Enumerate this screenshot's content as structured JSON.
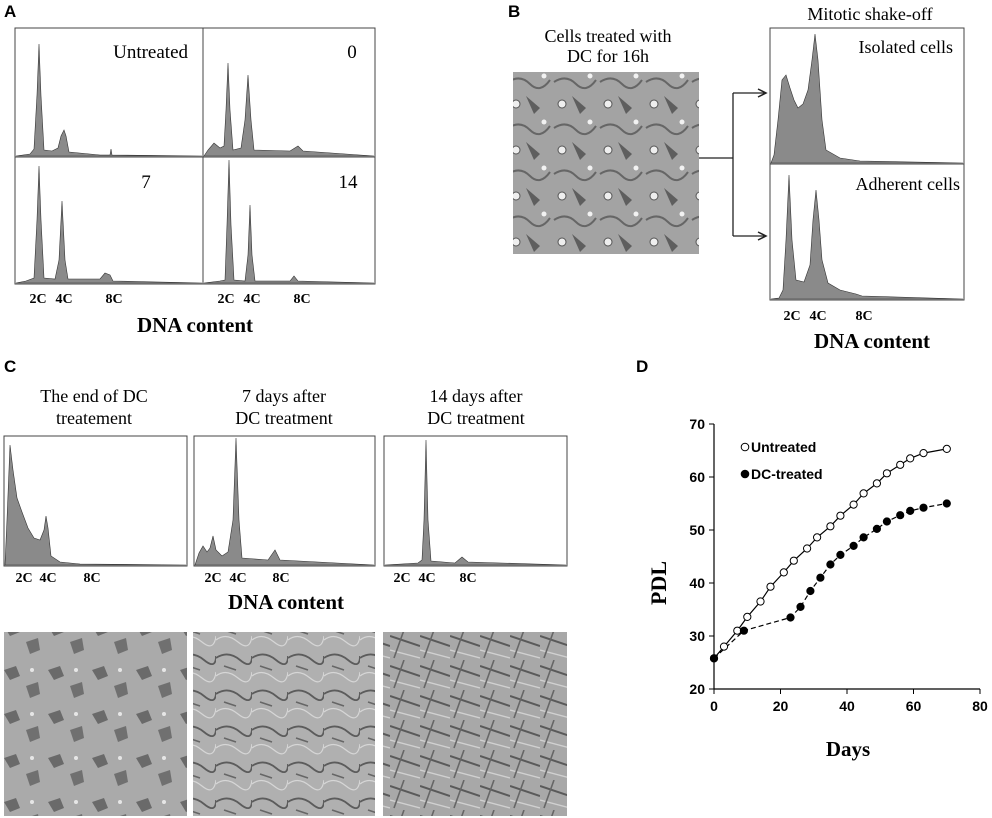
{
  "panel_labels": {
    "a": "A",
    "b": "B",
    "c": "C",
    "d": "D"
  },
  "panel_a": {
    "histogram_labels": [
      "Untreated",
      "0",
      "7",
      "14"
    ],
    "tick_labels": [
      "2C",
      "4C",
      "8C"
    ],
    "axis_label": "DNA content"
  },
  "panel_b": {
    "photo_caption_line1": "Cells treated with",
    "photo_caption_line2": "DC for 16h",
    "shakeoff_title": "Mitotic shake-off",
    "isolated_label": "Isolated cells",
    "adherent_label": "Adherent cells",
    "tick_labels": [
      "2C",
      "4C",
      "8C"
    ],
    "axis_label": "DNA content"
  },
  "panel_c": {
    "titles": [
      {
        "line1": "The end of DC",
        "line2": "treatement"
      },
      {
        "line1": "7 days after",
        "line2": "DC treatment"
      },
      {
        "line1": "14 days after",
        "line2": "DC treatment"
      }
    ],
    "tick_labels": [
      "2C",
      "4C",
      "8C"
    ],
    "axis_label": "DNA content"
  },
  "chart_data": {
    "type": "line",
    "xlabel": "Days",
    "ylabel": "PDL",
    "xlim": [
      0,
      80
    ],
    "ylim": [
      20,
      70
    ],
    "x_ticks": [
      0,
      20,
      40,
      60,
      80
    ],
    "y_ticks": [
      20,
      30,
      40,
      50,
      60,
      70
    ],
    "grid": false,
    "legend_position": "top-left",
    "series": [
      {
        "name": "Untreated",
        "marker": "open-circle",
        "line_style": "solid",
        "x": [
          0,
          3,
          7,
          10,
          14,
          17,
          21,
          24,
          28,
          31,
          35,
          38,
          42,
          45,
          49,
          52,
          56,
          59,
          63,
          70
        ],
        "y": [
          25.8,
          28,
          31,
          33.6,
          36.5,
          39.3,
          42,
          44.2,
          46.5,
          48.6,
          50.7,
          52.7,
          54.8,
          56.9,
          58.8,
          60.7,
          62.3,
          63.5,
          64.5,
          65.3
        ]
      },
      {
        "name": "DC-treated",
        "marker": "filled-circle",
        "line_style": "dashed",
        "x": [
          0,
          9,
          23,
          26,
          29,
          32,
          35,
          38,
          42,
          45,
          49,
          52,
          56,
          59,
          63,
          70
        ],
        "y": [
          25.8,
          31,
          33.5,
          35.5,
          38.5,
          41,
          43.5,
          45.3,
          47,
          48.6,
          50.2,
          51.6,
          52.8,
          53.6,
          54.2,
          55
        ]
      }
    ]
  }
}
